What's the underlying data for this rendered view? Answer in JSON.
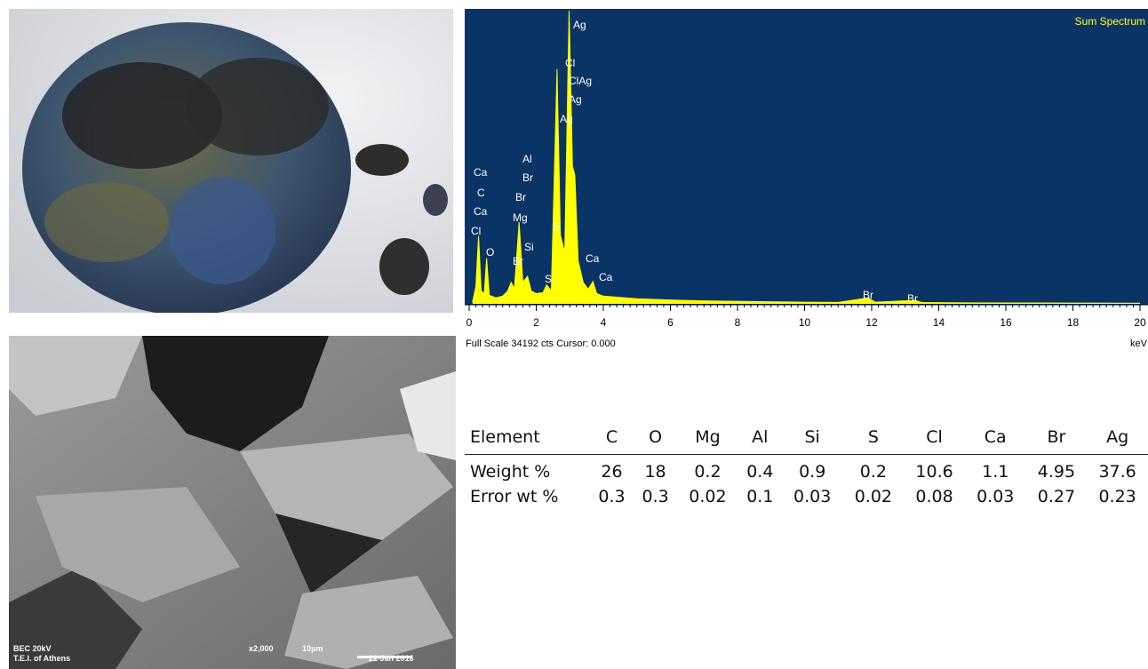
{
  "sem": {
    "labels": [
      "BEC  20kV",
      "T.E.I. of Athens",
      "x2,000",
      "10μm",
      "22 Jan 2016"
    ]
  },
  "spectrum": {
    "type": "line",
    "title": "Sum Spectrum",
    "footer": "Full Scale 34192 cts Cursor: 0.000",
    "x_unit": "keV",
    "color": "#ffff00",
    "x": [
      0.1,
      0.2,
      0.28,
      0.36,
      0.45,
      0.52,
      0.6,
      0.8,
      1.0,
      1.15,
      1.25,
      1.35,
      1.49,
      1.6,
      1.74,
      1.85,
      2.0,
      2.2,
      2.31,
      2.45,
      2.62,
      2.72,
      2.85,
      2.98,
      3.08,
      3.15,
      3.25,
      3.4,
      3.55,
      3.69,
      3.8,
      4.0,
      5.0,
      6.0,
      7.0,
      8.0,
      9.0,
      10.0,
      11.0,
      11.9,
      12.1,
      13.3,
      13.5,
      15,
      17,
      20
    ],
    "values": [
      200,
      2000,
      7900,
      1500,
      1200,
      5300,
      1000,
      700,
      900,
      1500,
      2500,
      1800,
      9500,
      2500,
      3200,
      1500,
      1200,
      1300,
      2200,
      1500,
      27300,
      8000,
      6000,
      34100,
      16000,
      15000,
      5000,
      2500,
      1700,
      2600,
      1200,
      900,
      600,
      450,
      350,
      300,
      250,
      200,
      170,
      700,
      200,
      400,
      150,
      120,
      100,
      80
    ],
    "xlim": [
      0,
      20
    ],
    "ylim": [
      0,
      34192
    ],
    "xticks": [
      0,
      2,
      4,
      6,
      8,
      10,
      12,
      14,
      16,
      18,
      20
    ],
    "annotations": [
      "Ag",
      "Cl",
      "ClAg",
      "Ag",
      "Ag",
      "Al",
      "Ca",
      "Br",
      "C",
      "Br",
      "Ca",
      "Mg",
      "Cl",
      "S",
      "O",
      "Si",
      "Br",
      "Ca",
      "S",
      "Ca",
      "Br",
      "Br"
    ]
  },
  "table": {
    "header": [
      "Element",
      "C",
      "O",
      "Mg",
      "Al",
      "Si",
      "S",
      "Cl",
      "Ca",
      "Br",
      "Ag"
    ],
    "rows": [
      [
        "Weight %",
        26,
        18,
        0.2,
        0.4,
        0.9,
        0.2,
        10.6,
        1.1,
        4.95,
        37.6
      ],
      [
        "Error wt %",
        0.3,
        0.3,
        0.02,
        0.1,
        0.03,
        0.02,
        0.08,
        0.03,
        0.27,
        0.23
      ]
    ]
  }
}
